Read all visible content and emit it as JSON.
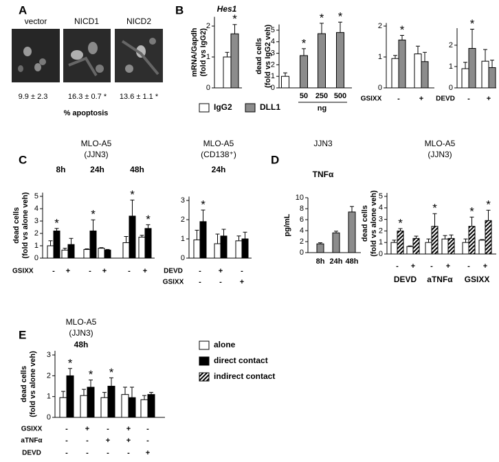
{
  "panel_labels": [
    "A",
    "B",
    "C",
    "D",
    "E"
  ],
  "panel_a": {
    "images": [
      {
        "label": "vector",
        "result": "9.9 ± 2.3"
      },
      {
        "label": "NICD1",
        "result": "16.3 ± 0.7 *"
      },
      {
        "label": "NICD2",
        "result": "13.6 ± 1.1 *"
      }
    ],
    "caption": "% apoptosis"
  },
  "star": "*",
  "legends": [
    {
      "entries": [
        {
          "name": "IgG2",
          "color": "#ffffff"
        },
        {
          "name": "DLL1",
          "color": "#8c8c8c"
        }
      ]
    },
    {
      "entries": [
        {
          "name": "alone",
          "color": "#ffffff"
        },
        {
          "name": "direct contact",
          "color": "#000000"
        },
        {
          "name": "indirect contact",
          "color": "#ffffff",
          "hatch": true
        }
      ]
    }
  ],
  "chart_data": [
    {
      "type": "bar",
      "title": [
        "Hes1"
      ],
      "ylabel": [
        "mRNA/Gapdh",
        "(fold vs IgG2)"
      ],
      "ylim": [
        0,
        2.3
      ],
      "yticks": [
        0,
        1,
        2
      ],
      "series": [
        {
          "color": "#ffffff",
          "values": [
            1.0
          ],
          "errors": [
            0.15
          ],
          "significant": [
            false
          ]
        },
        {
          "color": "#8c8c8c",
          "values": [
            1.75
          ],
          "errors": [
            0.3
          ],
          "significant": [
            true
          ]
        }
      ]
    },
    {
      "type": "bar",
      "ylabel": [
        "dead cells",
        "(fold vs IgG2 veh)"
      ],
      "ylim": [
        0,
        5.5
      ],
      "yticks": [
        0,
        1,
        2,
        3,
        4,
        5
      ],
      "categories": [
        null,
        "50",
        "250",
        "500"
      ],
      "xlabel": "ng",
      "series": [
        {
          "color": "#ffffff",
          "values": [
            1.0,
            null,
            null,
            null
          ],
          "errors": [
            0.3,
            null,
            null,
            null
          ],
          "significant": [
            false,
            false,
            false,
            false
          ]
        },
        {
          "color": "#8c8c8c",
          "values": [
            null,
            2.8,
            4.7,
            4.8
          ],
          "errors": [
            null,
            0.6,
            0.9,
            0.9
          ],
          "significant": [
            false,
            true,
            true,
            true
          ]
        }
      ]
    },
    {
      "type": "bar",
      "ylim": [
        0,
        2.1
      ],
      "yticks": [
        0,
        1,
        2
      ],
      "rows": [
        {
          "name": "GSIXX",
          "labels": [
            "-",
            "+"
          ]
        }
      ],
      "series": [
        {
          "color": "#ffffff",
          "values": [
            0.95,
            1.1
          ],
          "errors": [
            0.1,
            0.25
          ],
          "significant": [
            false,
            false
          ]
        },
        {
          "color": "#8c8c8c",
          "values": [
            1.55,
            0.85
          ],
          "errors": [
            0.15,
            0.3
          ],
          "significant": [
            true,
            false
          ]
        }
      ]
    },
    {
      "type": "bar",
      "ylim": [
        0,
        2.8
      ],
      "yticks": [
        0,
        1,
        2
      ],
      "rows": [
        {
          "name": "DEVD",
          "labels": [
            "-",
            "+"
          ]
        }
      ],
      "series": [
        {
          "color": "#ffffff",
          "values": [
            0.9,
            1.25
          ],
          "errors": [
            0.3,
            0.55
          ],
          "significant": [
            false,
            false
          ]
        },
        {
          "color": "#8c8c8c",
          "values": [
            1.85,
            0.95
          ],
          "errors": [
            0.9,
            0.35
          ],
          "significant": [
            true,
            false
          ]
        }
      ]
    },
    {
      "type": "bar",
      "title": [
        "MLO-A5",
        "(JJN3)"
      ],
      "ylabel": [
        "dead cells",
        "(fold vs alone veh)"
      ],
      "ylim": [
        0,
        5.3
      ],
      "yticks": [
        0,
        1,
        2,
        3,
        4,
        5
      ],
      "group_labels": [
        "8h",
        "24h",
        "48h"
      ],
      "rows": [
        {
          "name": "GSIXX",
          "labels": [
            "-",
            "+",
            "-",
            "+",
            "-",
            "+"
          ]
        }
      ],
      "series": [
        {
          "color": "#ffffff",
          "values": [
            1.0,
            0.65,
            0.7,
            0.8,
            1.25,
            1.7
          ],
          "errors": [
            0.4,
            0.15,
            0.05,
            0.05,
            0.5,
            0.15
          ],
          "significant": [
            false,
            false,
            false,
            false,
            false,
            false
          ]
        },
        {
          "color": "#000000",
          "values": [
            2.2,
            1.1,
            2.2,
            0.65,
            3.4,
            2.4
          ],
          "errors": [
            0.2,
            0.5,
            0.9,
            0.05,
            1.3,
            0.3
          ],
          "significant": [
            true,
            false,
            true,
            false,
            true,
            true
          ]
        }
      ]
    },
    {
      "type": "bar",
      "title": [
        "MLO-A5",
        "(CD138⁺)"
      ],
      "subtitle": "24h",
      "ylim": [
        0,
        3.2
      ],
      "yticks": [
        0,
        1,
        2,
        3
      ],
      "rows": [
        {
          "name": "DEVD",
          "labels": [
            "-",
            "+",
            "-"
          ]
        },
        {
          "name": "GSIXX",
          "labels": [
            "-",
            "-",
            "+"
          ]
        }
      ],
      "series": [
        {
          "color": "#ffffff",
          "values": [
            0.95,
            0.75,
            0.9
          ],
          "errors": [
            0.5,
            0.5,
            0.25
          ],
          "significant": [
            false,
            false,
            false
          ]
        },
        {
          "color": "#000000",
          "values": [
            1.9,
            1.15,
            1.0
          ],
          "errors": [
            0.6,
            0.35,
            0.35
          ],
          "significant": [
            true,
            false,
            false
          ]
        }
      ]
    },
    {
      "type": "bar",
      "title": [
        "JJN3"
      ],
      "subtitle": "TNFα",
      "ylabel": [
        "pg/mL"
      ],
      "ylim": [
        0,
        10
      ],
      "yticks": [
        0,
        2,
        4,
        6,
        8,
        10
      ],
      "categories": [
        "8h",
        "24h",
        "48h"
      ],
      "series": [
        {
          "color": "#8c8c8c",
          "values": [
            1.6,
            3.6,
            7.4
          ],
          "errors": [
            0.2,
            0.3,
            1.0
          ],
          "significant": [
            false,
            false,
            false
          ]
        }
      ]
    },
    {
      "type": "bar",
      "title": [
        "MLO-A5",
        "(JJN3)"
      ],
      "ylabel": [
        "dead cells",
        "(fold vs alone veh)"
      ],
      "ylim": [
        0,
        5.3
      ],
      "yticks": [
        0,
        1,
        2,
        3,
        4,
        5
      ],
      "rows": [
        {
          "labels": [
            "-",
            "+",
            "-",
            "+",
            "-",
            "+"
          ]
        }
      ],
      "group_labels": [
        "DEVD",
        "aTNFα",
        "GSIXX"
      ],
      "series": [
        {
          "color": "#ffffff",
          "values": [
            1.0,
            0.65,
            1.0,
            1.3,
            1.0,
            1.2
          ],
          "errors": [
            0.2,
            0.05,
            0.3,
            0.3,
            0.3,
            0.05
          ],
          "significant": [
            false,
            false,
            false,
            false,
            false,
            false
          ]
        },
        {
          "color": "#ffffff",
          "hatch": true,
          "values": [
            2.0,
            1.35,
            2.4,
            1.35,
            2.4,
            2.9
          ],
          "errors": [
            0.2,
            0.2,
            1.1,
            0.3,
            0.8,
            0.9
          ],
          "significant": [
            true,
            false,
            true,
            false,
            true,
            true
          ]
        }
      ]
    },
    {
      "type": "bar",
      "title": [
        "MLO-A5",
        "(JJN3)"
      ],
      "subtitle": "48h",
      "ylabel": [
        "dead cells",
        "(fold vs alone veh)"
      ],
      "ylim": [
        0,
        3.2
      ],
      "yticks": [
        0,
        1,
        2,
        3
      ],
      "rows": [
        {
          "name": "GSIXX",
          "labels": [
            "-",
            "+",
            "-",
            "+",
            "-"
          ]
        },
        {
          "name": "aTNFα",
          "labels": [
            "-",
            "-",
            "+",
            "+",
            "-"
          ]
        },
        {
          "name": "DEVD",
          "labels": [
            "-",
            "-",
            "-",
            "-",
            "+"
          ]
        }
      ],
      "series": [
        {
          "color": "#ffffff",
          "values": [
            0.95,
            1.05,
            0.95,
            1.1,
            0.85
          ],
          "errors": [
            0.3,
            0.3,
            0.25,
            0.35,
            0.2
          ],
          "significant": [
            false,
            false,
            false,
            false,
            false
          ]
        },
        {
          "color": "#000000",
          "values": [
            2.0,
            1.45,
            1.5,
            0.95,
            1.1
          ],
          "errors": [
            0.35,
            0.35,
            0.4,
            0.5,
            0.1
          ],
          "significant": [
            true,
            true,
            true,
            false,
            false
          ]
        }
      ]
    }
  ]
}
